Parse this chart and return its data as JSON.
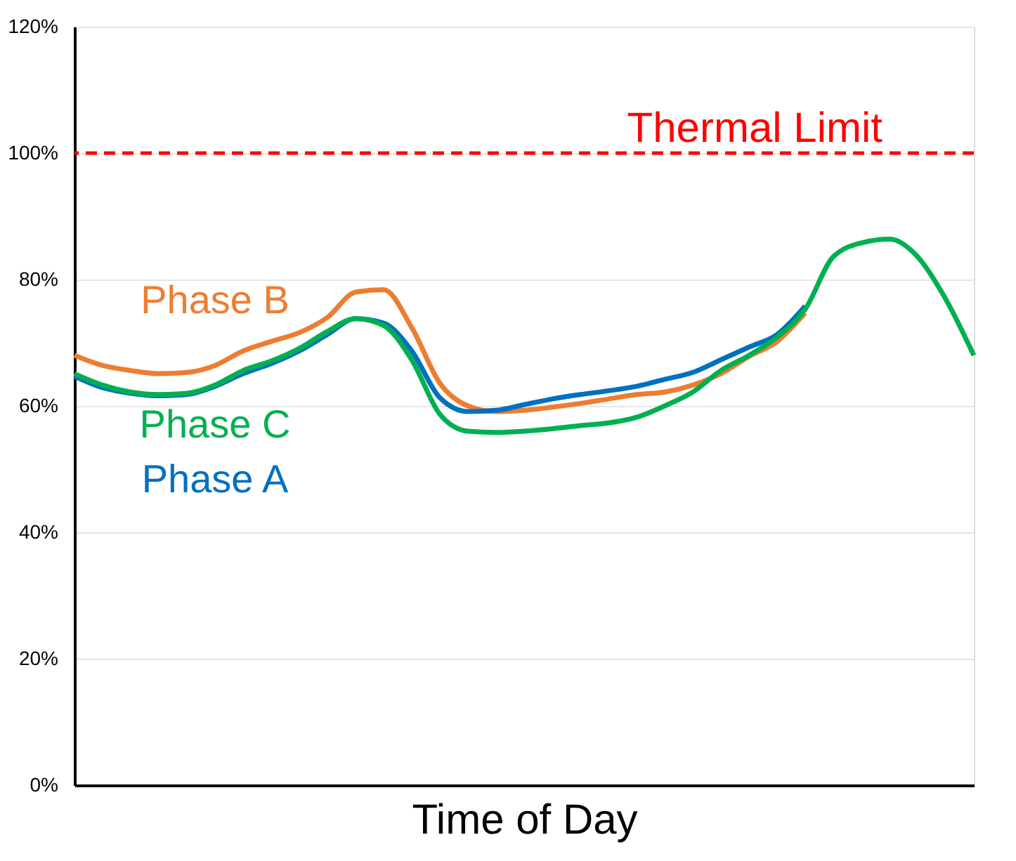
{
  "chart_data": {
    "type": "line",
    "xlabel": "Time of Day",
    "categories": [
      null,
      null,
      null,
      null,
      null,
      null,
      null,
      null,
      null,
      null,
      null,
      null,
      null,
      null,
      null,
      null,
      null,
      null,
      null,
      null,
      null,
      null,
      null,
      null,
      null,
      null,
      null,
      null,
      null,
      null,
      null,
      null,
      null
    ],
    "series": [
      {
        "name": "Phase B",
        "color": "#ed7d31",
        "values": [
          68,
          66.4,
          65.6,
          65.1,
          65.3,
          66.4,
          68.7,
          70.2,
          71.6,
          74,
          78,
          78.4,
          72.4,
          63.6,
          60,
          59.1,
          59.3,
          59.8,
          60.4,
          61.1,
          61.8,
          62.2,
          63.3,
          65.1,
          67.8,
          70.2,
          74.7,
          null,
          null,
          null,
          null,
          null,
          null
        ]
      },
      {
        "name": "Phase A",
        "color": "#0070c0",
        "values": [
          64.7,
          62.9,
          62,
          61.6,
          61.8,
          63.1,
          65.1,
          66.7,
          68.7,
          71.3,
          73.8,
          73.1,
          68.7,
          61.3,
          59.1,
          59.3,
          60.2,
          61.1,
          61.8,
          62.4,
          63.1,
          64.2,
          65.3,
          67.3,
          69.3,
          71.3,
          75.8,
          null,
          null,
          null,
          null,
          null,
          null
        ]
      },
      {
        "name": "Phase C",
        "color": "#00b050",
        "values": [
          65.1,
          63.3,
          62.2,
          61.8,
          62,
          63.3,
          65.6,
          67.1,
          69.1,
          71.8,
          73.8,
          72.7,
          67.3,
          58.7,
          56,
          55.8,
          56,
          56.4,
          56.9,
          57.3,
          58.2,
          60,
          62.2,
          65.6,
          68,
          70.9,
          75.3,
          83.6,
          85.8,
          86.4,
          83.6,
          76.9,
          68
        ]
      }
    ],
    "ylim": [
      0,
      120
    ],
    "yticks": [
      {
        "value": 0,
        "label": "0%"
      },
      {
        "value": 20,
        "label": "20%"
      },
      {
        "value": 40,
        "label": "40%"
      },
      {
        "value": 60,
        "label": "60%"
      },
      {
        "value": 80,
        "label": "80%"
      },
      {
        "value": 100,
        "label": "100%"
      },
      {
        "value": 120,
        "label": "120%"
      }
    ],
    "grid": "y",
    "tick_labels": "y",
    "line_style": "solid",
    "marker": "none",
    "ref_lines": [
      {
        "axis": "y",
        "value": 100,
        "label": "Thermal Limit",
        "color": "#ff0000",
        "line_style": "dashed"
      }
    ]
  }
}
